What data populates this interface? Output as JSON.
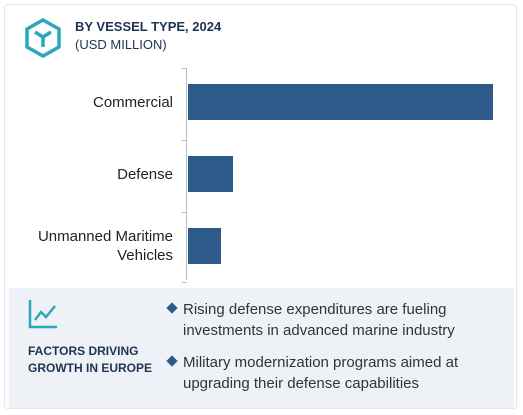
{
  "chart_data": {
    "type": "bar",
    "orientation": "horizontal",
    "title": "BY VESSEL TYPE, 2024",
    "subtitle": "(USD MILLION)",
    "categories": [
      "Commercial",
      "Defense",
      "Unmanned Maritime Vehicles"
    ],
    "values": [
      305,
      45,
      33
    ],
    "color": "#2d5b89"
  },
  "factors": {
    "title": "FACTORS DRIVING GROWTH IN EUROPE",
    "items": [
      "Rising defense expenditures are fueling investments in advanced marine industry",
      "Military modernization programs aimed at upgrading their defense capabilities"
    ]
  }
}
